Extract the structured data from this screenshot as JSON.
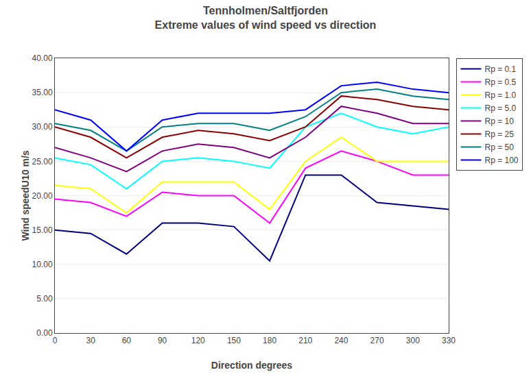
{
  "chart_data": {
    "type": "line",
    "title": "Tennholmen/Saltfjorden",
    "subtitle": "Extreme values of wind speed vs direction",
    "x_label": "Direction degrees",
    "y_label": "Wind speedU10 m/s",
    "x": [
      0,
      30,
      60,
      90,
      120,
      150,
      180,
      210,
      240,
      270,
      300,
      330
    ],
    "xlim": [
      0,
      330
    ],
    "xticks": [
      0,
      30,
      60,
      90,
      120,
      150,
      180,
      210,
      240,
      270,
      300,
      330
    ],
    "ylim": [
      0,
      40
    ],
    "yticks": [
      {
        "value": 0,
        "label": "0.00"
      },
      {
        "value": 5,
        "label": "5.00"
      },
      {
        "value": 10,
        "label": "10.00"
      },
      {
        "value": 15,
        "label": "15.00"
      },
      {
        "value": 20,
        "label": "20.00"
      },
      {
        "value": 25,
        "label": "25.00"
      },
      {
        "value": 30,
        "label": "30.00"
      },
      {
        "value": 35,
        "label": "35.00"
      },
      {
        "value": 40,
        "label": "40.00"
      }
    ],
    "grid": "y",
    "legend": "right",
    "series": [
      {
        "name": "Rp = 0.1",
        "color": "#000080",
        "values": [
          15.0,
          14.5,
          11.5,
          16.0,
          16.0,
          15.5,
          10.5,
          23.0,
          23.0,
          19.0,
          18.5,
          18.0
        ]
      },
      {
        "name": "Rp = 0.5",
        "color": "#ff00ff",
        "values": [
          19.5,
          19.0,
          17.0,
          20.5,
          20.0,
          20.0,
          16.0,
          24.0,
          26.5,
          25.0,
          23.0,
          23.0
        ]
      },
      {
        "name": "Rp = 1.0",
        "color": "#ffff00",
        "values": [
          21.5,
          21.0,
          17.5,
          22.0,
          22.0,
          22.0,
          18.0,
          25.0,
          28.5,
          25.0,
          25.0,
          25.0
        ]
      },
      {
        "name": "Rp = 5.0",
        "color": "#00ffff",
        "values": [
          25.5,
          24.5,
          21.0,
          25.0,
          25.5,
          25.0,
          24.0,
          30.0,
          32.0,
          30.0,
          29.0,
          30.0
        ]
      },
      {
        "name": "Rp = 10",
        "color": "#800080",
        "values": [
          27.0,
          25.5,
          23.5,
          26.5,
          27.5,
          27.0,
          25.5,
          28.5,
          33.0,
          32.0,
          30.5,
          30.5
        ]
      },
      {
        "name": "Rp = 25",
        "color": "#8b0000",
        "values": [
          30.0,
          28.5,
          25.5,
          28.5,
          29.5,
          29.0,
          28.0,
          30.0,
          34.5,
          34.0,
          33.0,
          32.5
        ]
      },
      {
        "name": "Rp = 50",
        "color": "#008080",
        "values": [
          30.5,
          29.5,
          26.5,
          30.0,
          30.5,
          30.5,
          29.5,
          31.5,
          35.0,
          35.5,
          34.5,
          34.0
        ]
      },
      {
        "name": "Rp = 100",
        "color": "#0000ff",
        "values": [
          32.5,
          31.0,
          26.5,
          31.0,
          32.0,
          32.0,
          32.0,
          32.5,
          36.0,
          36.5,
          35.5,
          35.0
        ]
      }
    ]
  }
}
